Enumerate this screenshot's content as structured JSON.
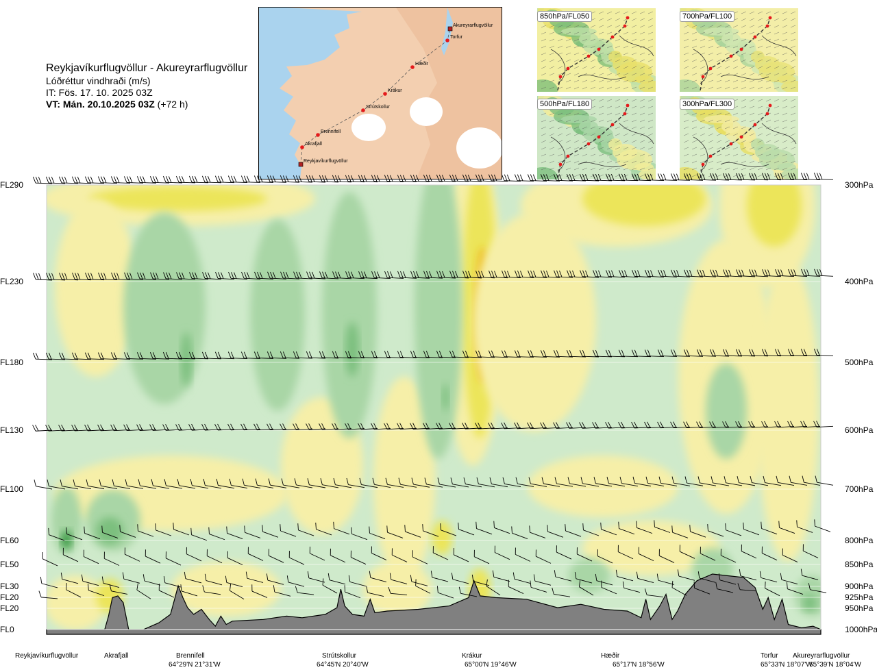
{
  "header": {
    "route": "Reykjavíkurflugvöllur - Akureyrarflugvöllur",
    "parameter": "Lóðréttur vindhraði (m/s)",
    "issue_time": "IT: Fös. 17. 10. 2025 03Z",
    "valid_time": "VT: Mán. 20.10.2025 03Z",
    "lead": "(+72 h)"
  },
  "map": {
    "points": [
      {
        "name": "Reykjavíkurflugvöllur",
        "kind": "airport"
      },
      {
        "name": "Akrafjall",
        "kind": "waypoint"
      },
      {
        "name": "Brennifell",
        "kind": "waypoint"
      },
      {
        "name": "Strútskollur",
        "kind": "waypoint"
      },
      {
        "name": "Krákur",
        "kind": "waypoint"
      },
      {
        "name": "Hæðir",
        "kind": "waypoint"
      },
      {
        "name": "Torfur",
        "kind": "waypoint"
      },
      {
        "name": "Akureyrarflugvöllur",
        "kind": "airport"
      }
    ],
    "colors": {
      "sea": "#aad3ee",
      "land": "#f3cfb0",
      "glacier": "#ffffff",
      "track": "#555555",
      "point": "#e41a1c"
    }
  },
  "insets": [
    {
      "label": "850hPa/FL050"
    },
    {
      "label": "700hPa/FL100"
    },
    {
      "label": "500hPa/FL180"
    },
    {
      "label": "300hPa/FL300"
    }
  ],
  "chart_data": {
    "type": "heatmap",
    "title": "Reykjavíkurflugvöllur - Akureyrarflugvöllur",
    "variable": "Lóðréttur vindhraði (m/s)",
    "flight_levels": [
      {
        "fl": "FL290",
        "hpa": 300,
        "label": "300hPa"
      },
      {
        "fl": "FL230",
        "hpa": 400,
        "label": "400hPa"
      },
      {
        "fl": "FL180",
        "hpa": 500,
        "label": "500hPa"
      },
      {
        "fl": "FL130",
        "hpa": 600,
        "label": "600hPa"
      },
      {
        "fl": "FL100",
        "hpa": 700,
        "label": "700hPa"
      },
      {
        "fl": "FL60",
        "hpa": 800,
        "label": "800hPa"
      },
      {
        "fl": "FL50",
        "hpa": 850,
        "label": "850hPa"
      },
      {
        "fl": "FL30",
        "hpa": 900,
        "label": "900hPa"
      },
      {
        "fl": "FL20",
        "hpa": 925,
        "label": "925hPa"
      },
      {
        "fl": "FL20",
        "hpa": 950,
        "label": "950hPa"
      },
      {
        "fl": "FL0",
        "hpa": 1000,
        "label": "1000hPa"
      }
    ],
    "waypoints": [
      {
        "name": "Reykjavíkurflugvöllur",
        "coord": "",
        "d": 0.0
      },
      {
        "name": "Akrafjall",
        "coord": "",
        "d": 0.082
      },
      {
        "name": "Brennifell",
        "coord": "64°29'N 21°31'W",
        "d": 0.184
      },
      {
        "name": "Strútskollur",
        "coord": "64°45'N 20°40'W",
        "d": 0.377
      },
      {
        "name": "Krákur",
        "coord": "65°00'N 19°46'W",
        "d": 0.556
      },
      {
        "name": "Hæðir",
        "coord": "65°17'N 18°56'W",
        "d": 0.754
      },
      {
        "name": "Torfur",
        "coord": "65°33'N 18°07'W",
        "d": 0.945
      },
      {
        "name": "Akureyrarflugvöllur",
        "coord": "65°39'N 18°04'W",
        "d": 1.0
      }
    ],
    "palette": {
      "down_strong": "#3a9a44",
      "down_medium": "#7cbf7e",
      "down_weak": "#a9d6a6",
      "down_faint": "#cfeacb",
      "neutral": "#fcfbe2",
      "up_faint": "#f6efa8",
      "up_weak": "#ece55a",
      "up_strong": "#efb81a",
      "terrain": "#808080"
    }
  }
}
